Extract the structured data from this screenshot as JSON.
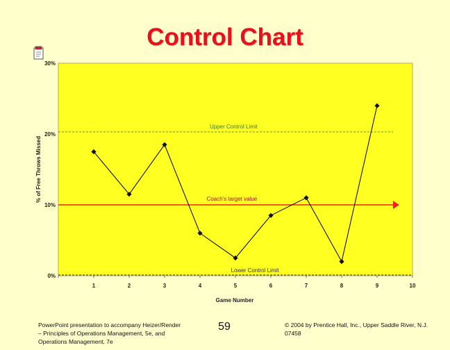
{
  "slide": {
    "title": "Control Chart",
    "footer_left": "PowerPoint presentation to accompany Heizer/Render – Principles of Operations Management, 5e, and Operations Management, 7e",
    "page_number": "59",
    "footer_right": "© 2004 by Prentice Hall, Inc., Upper Saddle River, N.J. 07458"
  },
  "colors": {
    "plot_background": "#ffff22",
    "slide_background": "#ffffcc",
    "title": "#e8101b",
    "target_line": "#ee2222",
    "control_limit_line": "#4a8a4a",
    "series": "#111111"
  },
  "chart_data": {
    "type": "line",
    "title": "",
    "xlabel": "Game Number",
    "ylabel": "% of Free Throws Missed",
    "xlim": [
      0,
      10
    ],
    "ylim": [
      0,
      30
    ],
    "x_ticks": [
      "0",
      "1",
      "2",
      "3",
      "4",
      "5",
      "6",
      "7",
      "8",
      "9",
      "10"
    ],
    "y_ticks": [
      "0%",
      "10%",
      "20%",
      "30%"
    ],
    "x": [
      1,
      2,
      3,
      4,
      5,
      6,
      7,
      8,
      9
    ],
    "series": [
      {
        "values": [
          17.5,
          11.5,
          18.5,
          6,
          2.5,
          8.5,
          11,
          2,
          24
        ]
      }
    ],
    "reference_lines": [
      {
        "label": "Upper Control Limit",
        "y": 20.3,
        "style": "dashed"
      },
      {
        "label": "Coach's target value",
        "y": 10,
        "style": "solid-arrow"
      },
      {
        "label": "Lower Control Limit",
        "y": 0,
        "style": "dashed"
      }
    ]
  }
}
